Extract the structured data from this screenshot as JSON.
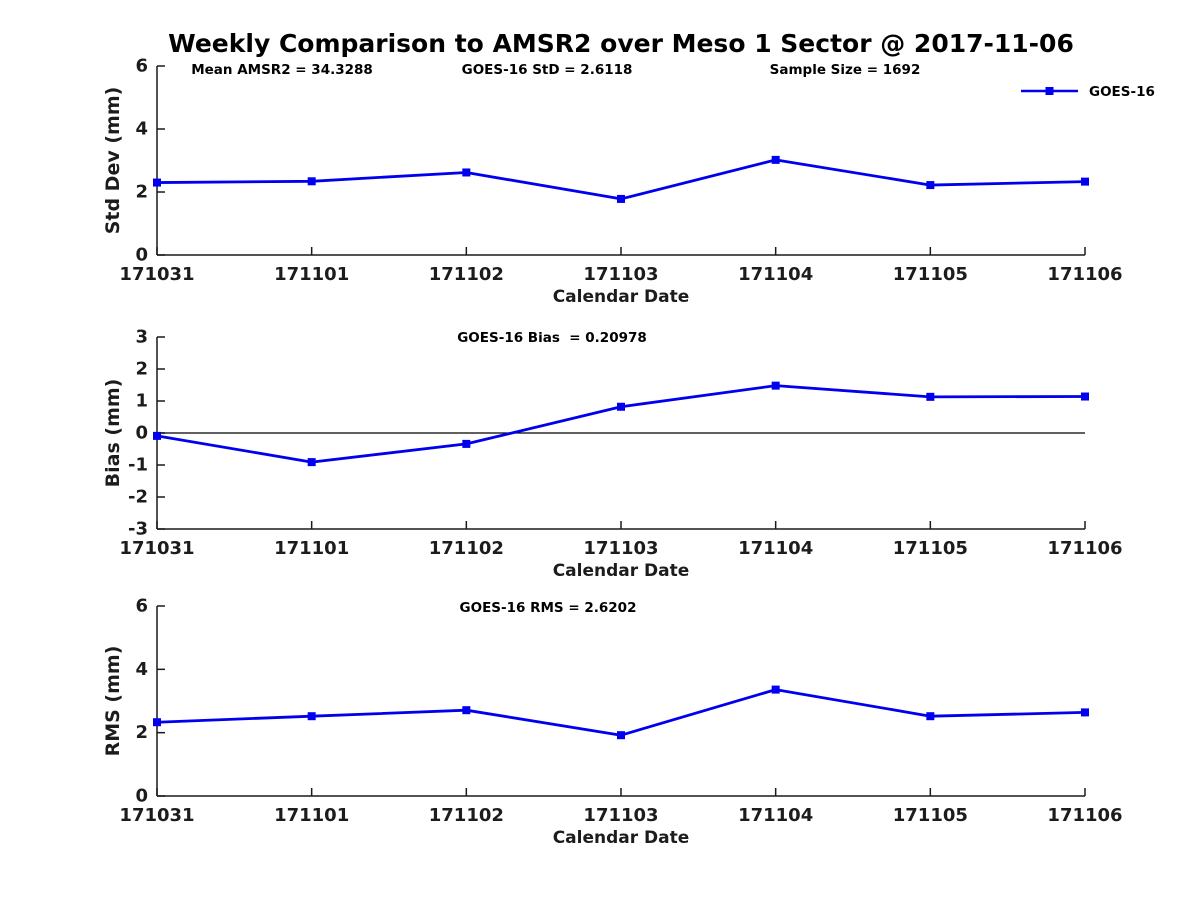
{
  "title": "Weekly Comparison to AMSR2 over Meso 1 Sector @ 2017-11-06",
  "colors": {
    "line_color": "#0000EE",
    "axis_color": "#1a1a1a",
    "zero_line_color": "#000000",
    "background": "#ffffff",
    "text_color": "#000000"
  },
  "legend": {
    "label": "GOES-16",
    "position": "top-right"
  },
  "chart_data": [
    {
      "type": "line",
      "annotations": [
        "Mean AMSR2 = 34.3288",
        "GOES-16 StD = 2.6118",
        "Sample Size = 1692"
      ],
      "categories": [
        "171031",
        "171101",
        "171102",
        "171103",
        "171104",
        "171105",
        "171106"
      ],
      "series": [
        {
          "name": "GOES-16",
          "values": [
            2.3,
            2.34,
            2.62,
            1.78,
            3.02,
            2.22,
            2.33
          ]
        }
      ],
      "xlabel": "Calendar Date",
      "ylabel": "Std Dev (mm)",
      "ylim": [
        0,
        6
      ],
      "yticks": [
        0,
        2,
        4,
        6
      ],
      "grid": false,
      "legend_visible": true,
      "marker": "square"
    },
    {
      "type": "line",
      "annotations": [
        "GOES-16 Bias  = 0.20978"
      ],
      "categories": [
        "171031",
        "171101",
        "171102",
        "171103",
        "171104",
        "171105",
        "171106"
      ],
      "series": [
        {
          "name": "GOES-16",
          "values": [
            -0.09,
            -0.91,
            -0.34,
            0.82,
            1.48,
            1.13,
            1.14
          ]
        }
      ],
      "xlabel": "Calendar Date",
      "ylabel": "Bias (mm)",
      "ylim": [
        -3,
        3
      ],
      "yticks": [
        -3,
        -2,
        -1,
        0,
        1,
        2,
        3
      ],
      "zero_line": true,
      "grid": false,
      "legend_visible": false,
      "marker": "square"
    },
    {
      "type": "line",
      "annotations": [
        "GOES-16 RMS = 2.6202"
      ],
      "categories": [
        "171031",
        "171101",
        "171102",
        "171103",
        "171104",
        "171105",
        "171106"
      ],
      "series": [
        {
          "name": "GOES-16",
          "values": [
            2.33,
            2.52,
            2.71,
            1.92,
            3.36,
            2.52,
            2.64
          ]
        }
      ],
      "xlabel": "Calendar Date",
      "ylabel": "RMS (mm)",
      "ylim": [
        0,
        6
      ],
      "yticks": [
        0,
        2,
        4,
        6
      ],
      "grid": false,
      "legend_visible": false,
      "marker": "square"
    }
  ]
}
